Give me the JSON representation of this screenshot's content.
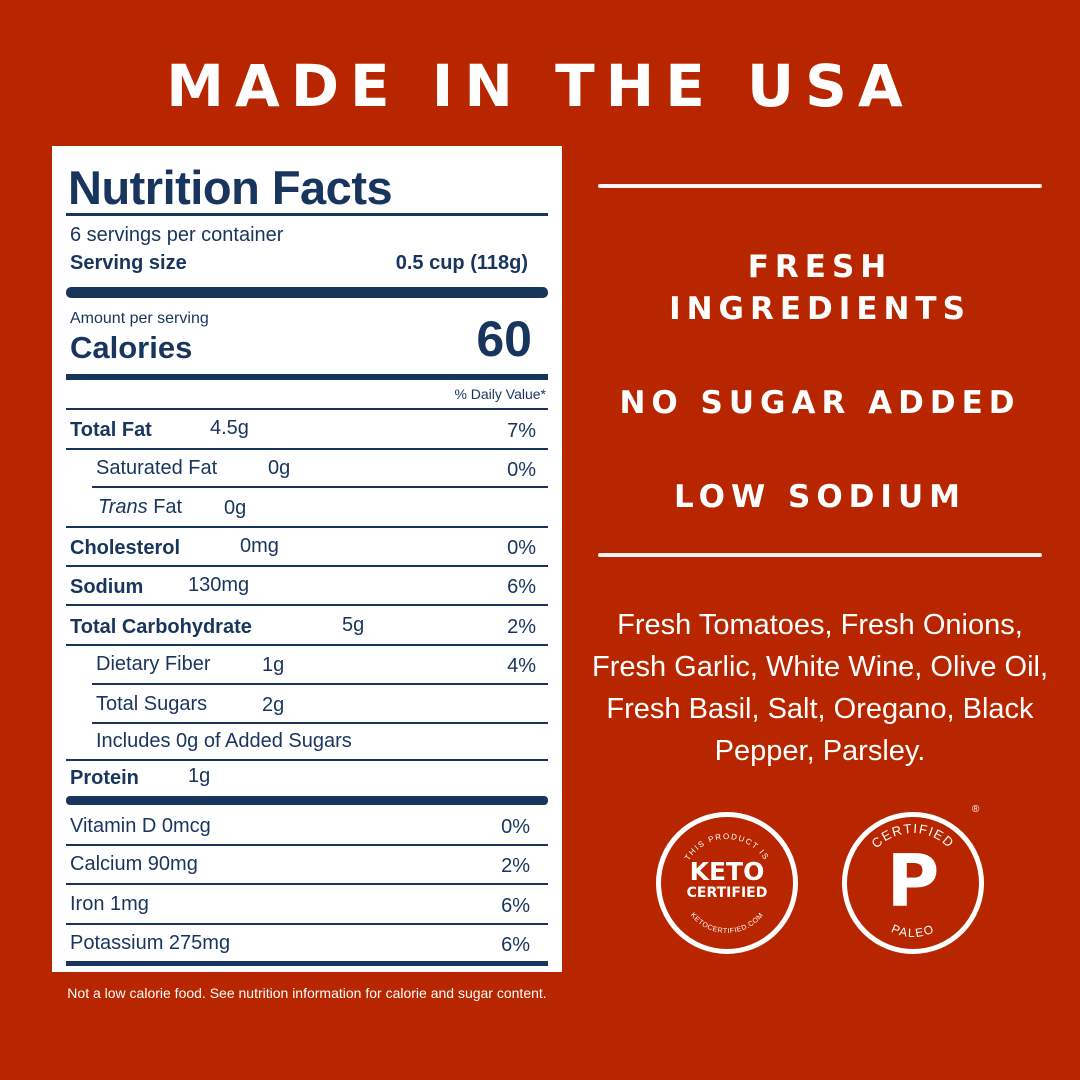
{
  "headline": "MADE IN THE USA",
  "nutrition": {
    "title": "Nutrition Facts",
    "servings": "6 servings per container",
    "serving_size_label": "Serving size",
    "serving_size_value": "0.5 cup (118g)",
    "amount_per_serving": "Amount per serving",
    "calories_label": "Calories",
    "calories_value": "60",
    "daily_value_header": "% Daily Value*",
    "rows": [
      {
        "name": "Total Fat",
        "amount": "4.5g",
        "dv": "7%"
      },
      {
        "name": "Saturated Fat",
        "amount": "0g",
        "dv": "0%"
      },
      {
        "name_italic": "Trans",
        "name": " Fat",
        "amount": "0g",
        "dv": ""
      },
      {
        "name": "Cholesterol",
        "amount": "0mg",
        "dv": "0%"
      },
      {
        "name": "Sodium",
        "amount": "130mg",
        "dv": "6%"
      },
      {
        "name": "Total Carbohydrate",
        "amount": "5g",
        "dv": "2%"
      },
      {
        "name": "Dietary Fiber",
        "amount": "1g",
        "dv": "4%"
      },
      {
        "name": "Total Sugars",
        "amount": "2g",
        "dv": ""
      },
      {
        "name": "Includes 0g of Added Sugars",
        "amount": "",
        "dv": ""
      },
      {
        "name": "Protein",
        "amount": "1g",
        "dv": ""
      }
    ],
    "vitamins": [
      {
        "name": "Vitamin D 0mcg",
        "dv": "0%"
      },
      {
        "name": "Calcium 90mg",
        "dv": "2%"
      },
      {
        "name": "Iron 1mg",
        "dv": "6%"
      },
      {
        "name": "Potassium 275mg",
        "dv": "6%"
      }
    ]
  },
  "disclaimer": "Not a low calorie food. See nutrition information for calorie and sugar content.",
  "claims": {
    "fresh_line1": "FRESH",
    "fresh_line2": "INGREDIENTS",
    "no_sugar": "NO SUGAR ADDED",
    "low_sodium": "LOW SODIUM"
  },
  "ingredients": "Fresh Tomatoes, Fresh Onions, Fresh Garlic, White Wine, Olive Oil, Fresh Basil, Salt, Oregano, Black Pepper, Parsley.",
  "badges": {
    "keto_top": "THIS PRODUCT IS",
    "keto_main1": "KETO",
    "keto_main2": "CERTIFIED",
    "keto_bottom": "KETOCERTIFIED.COM",
    "paleo_top": "CERTIFIED",
    "paleo_letter": "P",
    "paleo_bottom": "PALEO",
    "registered": "®"
  },
  "colors": {
    "background": "#b82600",
    "label_ink": "#18355e"
  }
}
